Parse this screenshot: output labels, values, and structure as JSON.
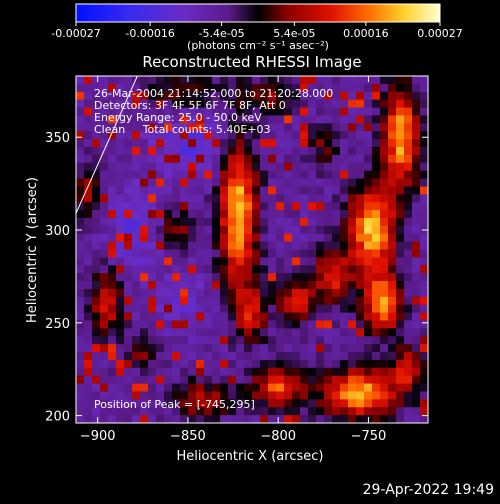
{
  "chart_data": {
    "type": "heatmap",
    "title": "Reconstructed RHESSI Image",
    "xlabel": "Heliocentric X (arcsec)",
    "ylabel": "Heliocentric Y (arcsec)",
    "xlim": [
      -912,
      -717
    ],
    "ylim": [
      196,
      383
    ],
    "x_ticks": [
      -900,
      -850,
      -800,
      -750
    ],
    "y_ticks": [
      200,
      250,
      300,
      350
    ],
    "colorbar": {
      "min": -0.00027,
      "max": 0.00027,
      "tick_values": [
        -0.00027,
        -0.00016,
        -5.4e-05,
        5.4e-05,
        0.00016,
        0.00027
      ],
      "tick_labels": [
        "-0.00027",
        "-0.00016",
        "-5.4e-05",
        "5.4e-05",
        "0.00016",
        "0.00027"
      ],
      "unit_label": "(photons cm⁻² s⁻¹ asec⁻²)"
    },
    "annotations": [
      "26-Mar-2004 21:14:52.000 to 21:20:28.000",
      "Detectors: 3F 4F 5F 6F 7F 8F, Att 0",
      "Energy Range: 25.0 - 50.0 keV",
      "Clean     Total counts: 5.40E+03"
    ],
    "peak_label": "Position of Peak = [-745,295]",
    "peak": {
      "x": -745,
      "y": 295
    },
    "limb_line": [
      [
        -912,
        309
      ],
      [
        -878,
        383
      ]
    ],
    "sources": [
      {
        "x": -822,
        "y": 310,
        "sx": 7,
        "sy": 28,
        "amp": 1.0
      },
      {
        "x": -815,
        "y": 255,
        "sx": 6,
        "sy": 10,
        "amp": 0.55
      },
      {
        "x": -748,
        "y": 300,
        "sx": 9,
        "sy": 16,
        "amp": 1.0
      },
      {
        "x": -742,
        "y": 260,
        "sx": 7,
        "sy": 11,
        "amp": 0.9
      },
      {
        "x": -732,
        "y": 350,
        "sx": 7,
        "sy": 18,
        "amp": 0.95
      },
      {
        "x": -770,
        "y": 275,
        "sx": 8,
        "sy": 10,
        "amp": 0.6
      },
      {
        "x": -790,
        "y": 262,
        "sx": 7,
        "sy": 8,
        "amp": 0.6
      },
      {
        "x": -800,
        "y": 215,
        "sx": 10,
        "sy": 7,
        "amp": 0.75
      },
      {
        "x": -755,
        "y": 212,
        "sx": 14,
        "sy": 9,
        "amp": 0.95
      },
      {
        "x": -842,
        "y": 208,
        "sx": 10,
        "sy": 7,
        "amp": 0.5
      },
      {
        "x": -895,
        "y": 260,
        "sx": 6,
        "sy": 12,
        "amp": 0.55
      },
      {
        "x": -905,
        "y": 320,
        "sx": 5,
        "sy": 10,
        "amp": 0.45
      },
      {
        "x": -856,
        "y": 300,
        "sx": 6,
        "sy": 7,
        "amp": 0.4
      },
      {
        "x": -850,
        "y": 375,
        "sx": 14,
        "sy": 6,
        "amp": 0.35
      },
      {
        "x": -805,
        "y": 372,
        "sx": 10,
        "sy": 6,
        "amp": 0.35
      },
      {
        "x": -875,
        "y": 235,
        "sx": 6,
        "sy": 6,
        "amp": 0.35
      },
      {
        "x": -775,
        "y": 345,
        "sx": 6,
        "sy": 8,
        "amp": 0.3
      },
      {
        "x": -728,
        "y": 225,
        "sx": 6,
        "sy": 8,
        "amp": 0.6
      }
    ],
    "negatives": [
      {
        "x": -845,
        "y": 345,
        "sx": 16,
        "sy": 12,
        "amp": 0.3
      },
      {
        "x": -880,
        "y": 300,
        "sx": 9,
        "sy": 16,
        "amp": 0.25
      },
      {
        "x": -855,
        "y": 262,
        "sx": 10,
        "sy": 10,
        "amp": 0.2
      }
    ]
  },
  "footer": {
    "date": "29-Apr-2022 19:49"
  }
}
